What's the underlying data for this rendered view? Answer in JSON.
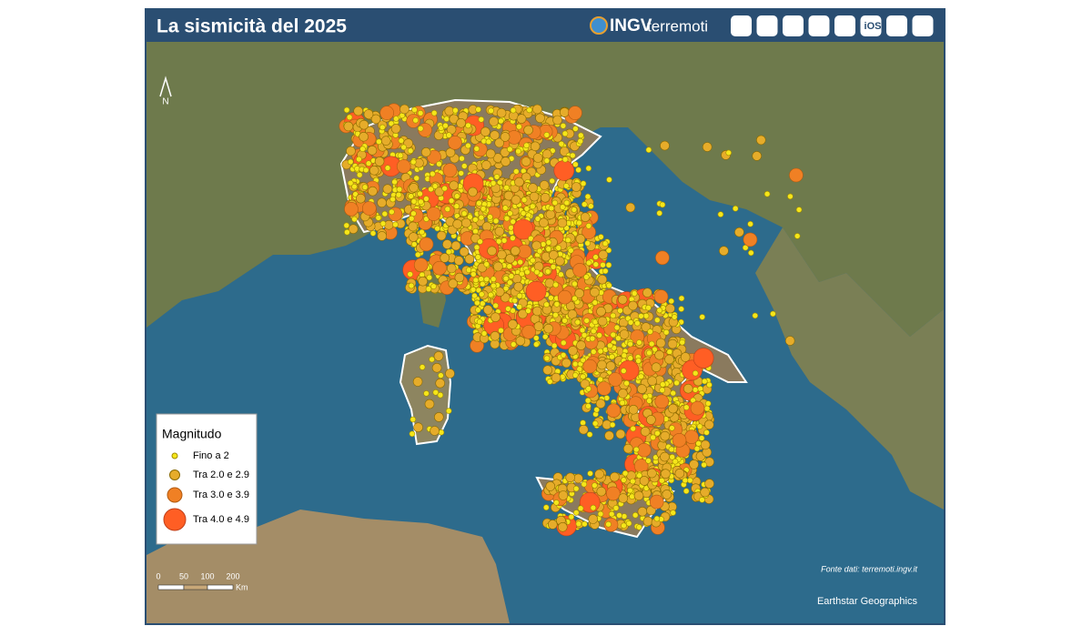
{
  "header": {
    "title": "La sismicità del 2025",
    "brand": "INGV",
    "brand_suffix": "terremoti",
    "ios": "iOS"
  },
  "map": {
    "north": "N",
    "legend": {
      "title": "Magnitudo",
      "items": [
        "Fino a 2",
        "Tra 2.0 e 2.9",
        "Tra 3.0 e 3.9",
        "Tra 4.0 e 4.9"
      ]
    },
    "scale": {
      "ticks": [
        "0",
        "50",
        "100",
        "200"
      ],
      "unit": "Km"
    },
    "source": "Fonte dati: terremoti.ingv.it",
    "attribution": "Earthstar Geographics"
  }
}
